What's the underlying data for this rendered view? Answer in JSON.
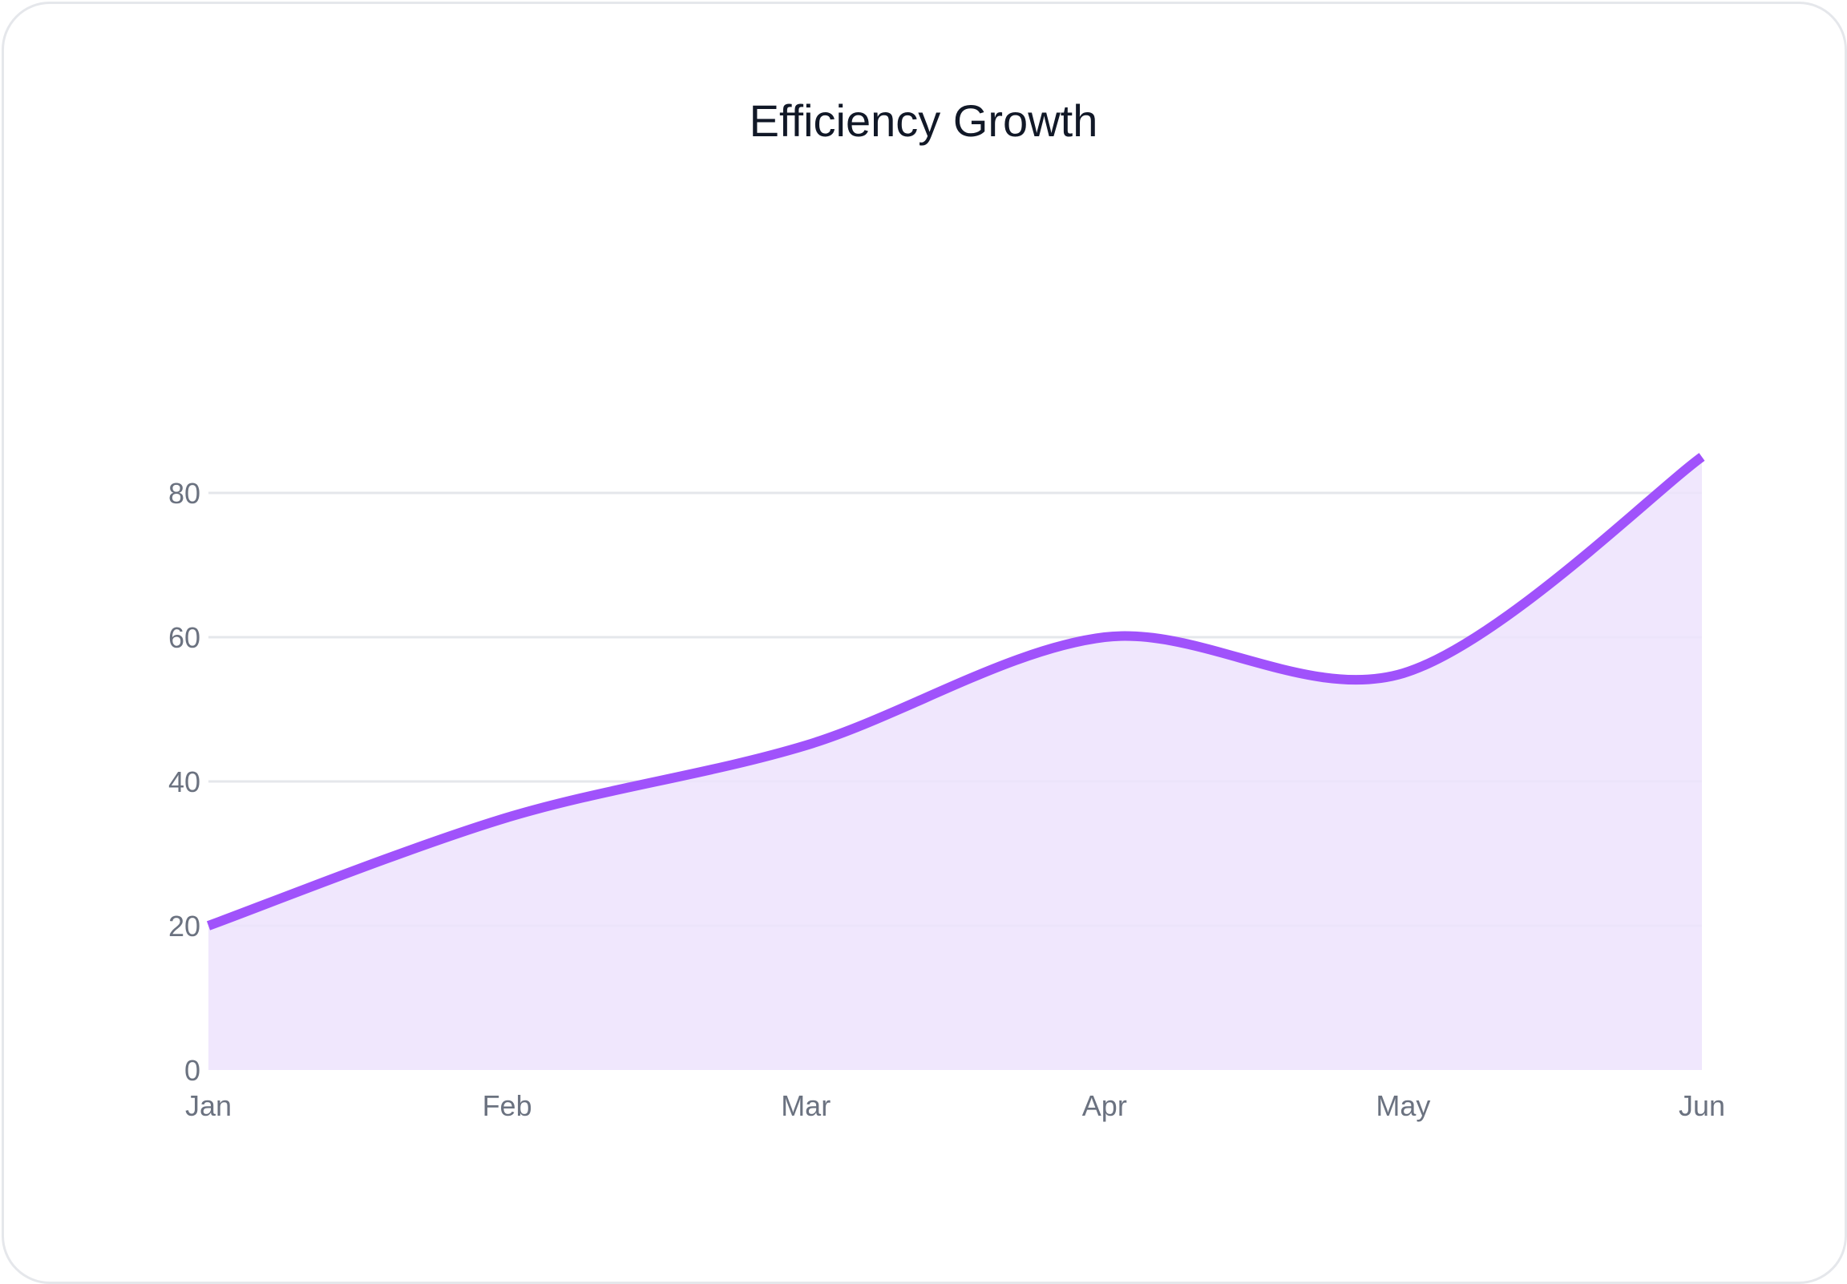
{
  "chart_data": {
    "type": "area",
    "title": "Efficiency Growth",
    "categories": [
      "Jan",
      "Feb",
      "Mar",
      "Apr",
      "May",
      "Jun"
    ],
    "series": [
      {
        "values": [
          20,
          35,
          45,
          60,
          55,
          85
        ]
      }
    ],
    "ylim": [
      0,
      85
    ],
    "yticks": [
      0,
      20,
      40,
      60,
      80
    ],
    "grid": true,
    "colors": {
      "line": "#a052fb",
      "fill": "#ede3fd",
      "grid": "#e5e7eb",
      "text": "#6b7280",
      "title": "#111827"
    }
  }
}
